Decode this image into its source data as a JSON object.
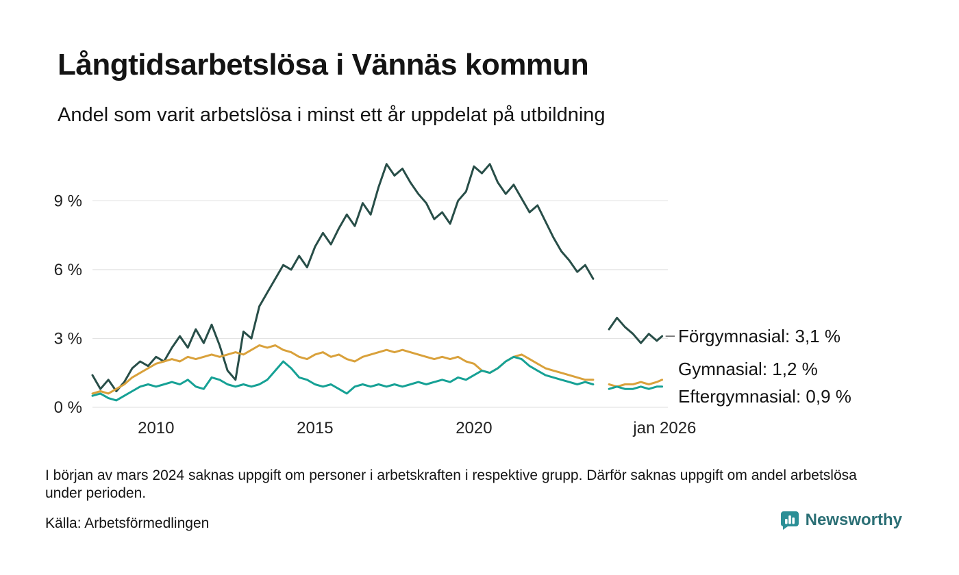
{
  "header": {
    "title": "Långtidsarbetslösa i Vännäs kommun",
    "subtitle": "Andel som varit arbetslösa i minst ett år uppdelat på utbildning"
  },
  "footnote": {
    "text": "I början av mars 2024 saknas uppgift om personer i arbetskraften i respektive grupp. Därför saknas uppgift om andel arbetslösa under perioden."
  },
  "source": {
    "text": "Källa: Arbetsförmedlingen"
  },
  "brand": {
    "name": "Newsworthy",
    "icon": "newsworthy-logo-icon",
    "icon_color": "#2b8f96",
    "text_color": "#2b6f75"
  },
  "chart_data": {
    "type": "line",
    "title": "",
    "xlabel": "",
    "ylabel": "",
    "grid": true,
    "legend_position": "right-end-labels",
    "xlim": [
      2008,
      2026.1
    ],
    "ylim": [
      0,
      10.8
    ],
    "yticks": [
      {
        "value": 0,
        "label": "0 %"
      },
      {
        "value": 3,
        "label": "3 %"
      },
      {
        "value": 6,
        "label": "6 %"
      },
      {
        "value": 9,
        "label": "9 %"
      }
    ],
    "xticks": [
      {
        "value": 2010,
        "label": "2010"
      },
      {
        "value": 2015,
        "label": "2015"
      },
      {
        "value": 2020,
        "label": "2020"
      },
      {
        "value": 2026,
        "label": "jan 2026"
      }
    ],
    "gap_note": "Values missing around March 2024 (shown as line break)",
    "x": [
      2008,
      2008.25,
      2008.5,
      2008.75,
      2009,
      2009.25,
      2009.5,
      2009.75,
      2010,
      2010.25,
      2010.5,
      2010.75,
      2011,
      2011.25,
      2011.5,
      2011.75,
      2012,
      2012.25,
      2012.5,
      2012.75,
      2013,
      2013.25,
      2013.5,
      2013.75,
      2014,
      2014.25,
      2014.5,
      2014.75,
      2015,
      2015.25,
      2015.5,
      2015.75,
      2016,
      2016.25,
      2016.5,
      2016.75,
      2017,
      2017.25,
      2017.5,
      2017.75,
      2018,
      2018.25,
      2018.5,
      2018.75,
      2019,
      2019.25,
      2019.5,
      2019.75,
      2020,
      2020.25,
      2020.5,
      2020.75,
      2021,
      2021.25,
      2021.5,
      2021.75,
      2022,
      2022.25,
      2022.5,
      2022.75,
      2023,
      2023.25,
      2023.5,
      2023.75,
      2024,
      2024.25,
      2024.5,
      2024.75,
      2025,
      2025.25,
      2025.5,
      2025.75,
      2025.92
    ],
    "series": [
      {
        "name": "Förgymnasial",
        "end_label": "Förgymnasial: 3,1 %",
        "end_value": 3.1,
        "color": "#284e48",
        "label_dy": 0,
        "connector": true,
        "values": [
          1.4,
          0.8,
          1.2,
          0.7,
          1.1,
          1.7,
          2.0,
          1.8,
          2.2,
          2.0,
          2.6,
          3.1,
          2.6,
          3.4,
          2.8,
          3.6,
          2.7,
          1.6,
          1.2,
          3.3,
          3.0,
          4.4,
          5.0,
          5.6,
          6.2,
          6.0,
          6.6,
          6.1,
          7.0,
          7.6,
          7.1,
          7.8,
          8.4,
          7.9,
          8.9,
          8.4,
          9.6,
          10.6,
          10.1,
          10.4,
          9.8,
          9.3,
          8.9,
          8.2,
          8.5,
          8.0,
          9.0,
          9.4,
          10.5,
          10.2,
          10.6,
          9.8,
          9.3,
          9.7,
          9.1,
          8.5,
          8.8,
          8.1,
          7.4,
          6.8,
          6.4,
          5.9,
          6.2,
          5.6,
          null,
          3.4,
          3.9,
          3.5,
          3.2,
          2.8,
          3.2,
          2.9,
          3.1
        ]
      },
      {
        "name": "Gymnasial",
        "end_label": "Gymnasial: 1,2 %",
        "end_value": 1.2,
        "color": "#d9a13b",
        "label_dy": -16,
        "connector": false,
        "values": [
          0.6,
          0.7,
          0.6,
          0.8,
          1.0,
          1.3,
          1.5,
          1.7,
          1.9,
          2.0,
          2.1,
          2.0,
          2.2,
          2.1,
          2.2,
          2.3,
          2.2,
          2.3,
          2.4,
          2.3,
          2.5,
          2.7,
          2.6,
          2.7,
          2.5,
          2.4,
          2.2,
          2.1,
          2.3,
          2.4,
          2.2,
          2.3,
          2.1,
          2.0,
          2.2,
          2.3,
          2.4,
          2.5,
          2.4,
          2.5,
          2.4,
          2.3,
          2.2,
          2.1,
          2.2,
          2.1,
          2.2,
          2.0,
          1.9,
          1.6,
          1.5,
          1.7,
          2.0,
          2.2,
          2.3,
          2.1,
          1.9,
          1.7,
          1.6,
          1.5,
          1.4,
          1.3,
          1.2,
          1.2,
          null,
          1.0,
          0.9,
          1.0,
          1.0,
          1.1,
          1.0,
          1.1,
          1.2
        ]
      },
      {
        "name": "Eftergymnasial",
        "end_label": "Eftergymnasial: 0,9 %",
        "end_value": 0.9,
        "color": "#16a195",
        "label_dy": 14,
        "connector": false,
        "values": [
          0.5,
          0.6,
          0.4,
          0.3,
          0.5,
          0.7,
          0.9,
          1.0,
          0.9,
          1.0,
          1.1,
          1.0,
          1.2,
          0.9,
          0.8,
          1.3,
          1.2,
          1.0,
          0.9,
          1.0,
          0.9,
          1.0,
          1.2,
          1.6,
          2.0,
          1.7,
          1.3,
          1.2,
          1.0,
          0.9,
          1.0,
          0.8,
          0.6,
          0.9,
          1.0,
          0.9,
          1.0,
          0.9,
          1.0,
          0.9,
          1.0,
          1.1,
          1.0,
          1.1,
          1.2,
          1.1,
          1.3,
          1.2,
          1.4,
          1.6,
          1.5,
          1.7,
          2.0,
          2.2,
          2.1,
          1.8,
          1.6,
          1.4,
          1.3,
          1.2,
          1.1,
          1.0,
          1.1,
          1.0,
          null,
          0.8,
          0.9,
          0.8,
          0.8,
          0.9,
          0.8,
          0.9,
          0.9
        ]
      }
    ]
  }
}
